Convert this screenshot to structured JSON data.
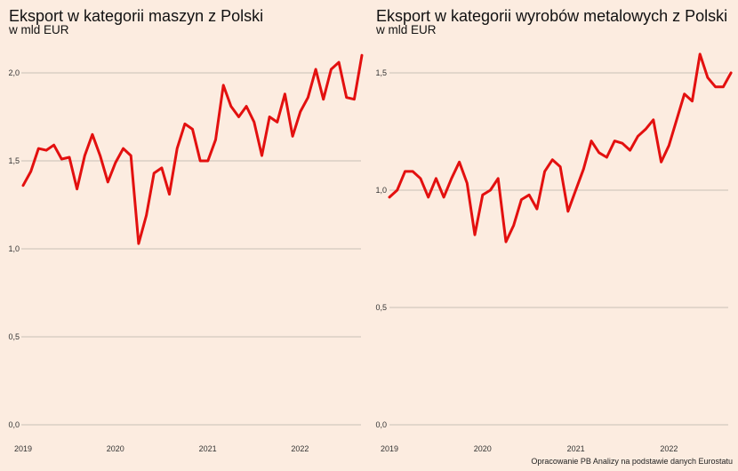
{
  "source_note": "Opracowanie PB Analizy na podstawie danych Eurostatu",
  "colors": {
    "line": "#e3100f",
    "background": "#fcece0",
    "grid": "#c9bfb6"
  },
  "chart_data": [
    {
      "type": "line",
      "title": "Eksport w kategorii maszyn z Polski",
      "subtitle": "w mld EUR",
      "xlabel": "",
      "ylabel": "",
      "x_start": "2019-01",
      "frequency": "monthly",
      "x_tick_labels": [
        "2019",
        "2020",
        "2021",
        "2022"
      ],
      "y_ticks": [
        0.0,
        0.5,
        1.0,
        1.5,
        2.0
      ],
      "y_tick_labels": [
        "0,0",
        "0,5",
        "1,0",
        "1,5",
        "2,0"
      ],
      "ylim": [
        0,
        2.0
      ],
      "grid": true,
      "series": [
        {
          "name": "Eksport maszyn",
          "values": [
            1.36,
            1.44,
            1.57,
            1.56,
            1.59,
            1.51,
            1.52,
            1.34,
            1.53,
            1.65,
            1.53,
            1.38,
            1.49,
            1.57,
            1.53,
            1.03,
            1.19,
            1.43,
            1.46,
            1.31,
            1.57,
            1.71,
            1.68,
            1.5,
            1.5,
            1.62,
            1.93,
            1.81,
            1.75,
            1.81,
            1.72,
            1.53,
            1.75,
            1.72,
            1.88,
            1.64,
            1.78,
            1.86,
            2.02,
            1.85,
            2.02,
            2.06,
            1.86,
            1.85,
            2.1
          ]
        }
      ]
    },
    {
      "type": "line",
      "title": "Eksport w kategorii wyrobów metalowych z Polski",
      "subtitle": "w mld EUR",
      "xlabel": "",
      "ylabel": "",
      "x_start": "2019-01",
      "frequency": "monthly",
      "x_tick_labels": [
        "2019",
        "2020",
        "2021",
        "2022"
      ],
      "y_ticks": [
        0.0,
        0.5,
        1.0,
        1.5
      ],
      "y_tick_labels": [
        "0,0",
        "0,5",
        "1,0",
        "1,5"
      ],
      "ylim": [
        0,
        1.5
      ],
      "grid": true,
      "series": [
        {
          "name": "Eksport wyrobów metalowych",
          "values": [
            0.97,
            1.0,
            1.08,
            1.08,
            1.05,
            0.97,
            1.05,
            0.97,
            1.05,
            1.12,
            1.03,
            0.81,
            0.98,
            1.0,
            1.05,
            0.78,
            0.85,
            0.96,
            0.98,
            0.92,
            1.08,
            1.13,
            1.1,
            0.91,
            1.0,
            1.09,
            1.21,
            1.16,
            1.14,
            1.21,
            1.2,
            1.17,
            1.23,
            1.26,
            1.3,
            1.12,
            1.19,
            1.3,
            1.41,
            1.38,
            1.58,
            1.48,
            1.44,
            1.44,
            1.5
          ]
        }
      ]
    }
  ]
}
